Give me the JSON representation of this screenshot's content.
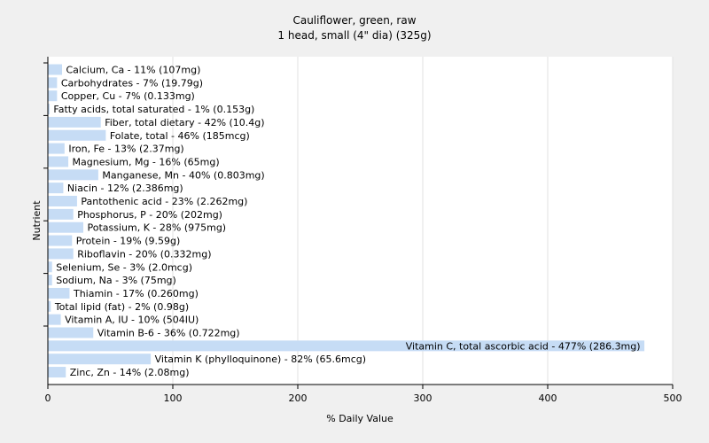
{
  "chart_data": {
    "type": "bar",
    "orientation": "horizontal",
    "title": "Cauliflower, green, raw",
    "subtitle": "1 head, small (4\" dia) (325g)",
    "xlabel": "% Daily Value",
    "ylabel": "Nutrient",
    "xlim": [
      0,
      500
    ],
    "xticks": [
      0,
      100,
      200,
      300,
      400,
      500
    ],
    "grid": true,
    "bar_color": "#c6dcf5",
    "categories": [
      "Calcium, Ca",
      "Carbohydrates",
      "Copper, Cu",
      "Fatty acids, total saturated",
      "Fiber, total dietary",
      "Folate, total",
      "Iron, Fe",
      "Magnesium, Mg",
      "Manganese, Mn",
      "Niacin",
      "Pantothenic acid",
      "Phosphorus, P",
      "Potassium, K",
      "Protein",
      "Riboflavin",
      "Selenium, Se",
      "Sodium, Na",
      "Thiamin",
      "Total lipid (fat)",
      "Vitamin A, IU",
      "Vitamin B-6",
      "Vitamin C, total ascorbic acid",
      "Vitamin K (phylloquinone)",
      "Zinc, Zn"
    ],
    "values": [
      11,
      7,
      7,
      1,
      42,
      46,
      13,
      16,
      40,
      12,
      23,
      20,
      28,
      19,
      20,
      3,
      3,
      17,
      2,
      10,
      36,
      477,
      82,
      14
    ],
    "labels": [
      "Calcium, Ca - 11% (107mg)",
      "Carbohydrates - 7% (19.79g)",
      "Copper, Cu - 7% (0.133mg)",
      "Fatty acids, total saturated - 1% (0.153g)",
      "Fiber, total dietary - 42% (10.4g)",
      "Folate, total - 46% (185mcg)",
      "Iron, Fe - 13% (2.37mg)",
      "Magnesium, Mg - 16% (65mg)",
      "Manganese, Mn - 40% (0.803mg)",
      "Niacin - 12% (2.386mg)",
      "Pantothenic acid - 23% (2.262mg)",
      "Phosphorus, P - 20% (202mg)",
      "Potassium, K - 28% (975mg)",
      "Protein - 19% (9.59g)",
      "Riboflavin - 20% (0.332mg)",
      "Selenium, Se - 3% (2.0mcg)",
      "Sodium, Na - 3% (75mg)",
      "Thiamin - 17% (0.260mg)",
      "Total lipid (fat) - 2% (0.98g)",
      "Vitamin A, IU - 10% (504IU)",
      "Vitamin B-6 - 36% (0.722mg)",
      "Vitamin C, total ascorbic acid - 477% (286.3mg)",
      "Vitamin K (phylloquinone) - 82% (65.6mcg)",
      "Zinc, Zn - 14% (2.08mg)"
    ]
  }
}
